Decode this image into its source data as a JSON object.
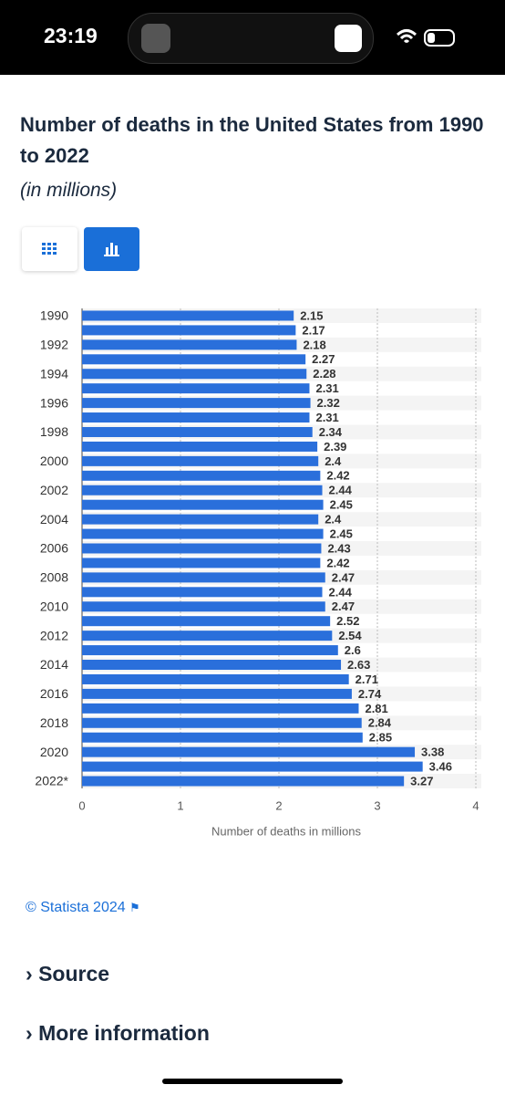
{
  "status_bar": {
    "time": "23:19"
  },
  "chart_data": {
    "type": "barh",
    "title": "Number of deaths in the United States from 1990 to 2022",
    "subtitle": "(in millions)",
    "x_label": "Number of deaths in millions",
    "categories": [
      "1990",
      null,
      "1992",
      null,
      "1994",
      null,
      "1996",
      null,
      "1998",
      null,
      "2000",
      null,
      "2002",
      null,
      "2004",
      null,
      "2006",
      null,
      "2008",
      null,
      "2010",
      null,
      "2012",
      null,
      "2014",
      null,
      "2016",
      null,
      "2018",
      null,
      "2020",
      null,
      "2022*"
    ],
    "values": [
      2.15,
      2.17,
      2.18,
      2.27,
      2.28,
      2.31,
      2.32,
      2.31,
      2.34,
      2.39,
      2.4,
      2.42,
      2.44,
      2.45,
      2.4,
      2.45,
      2.43,
      2.42,
      2.47,
      2.44,
      2.47,
      2.52,
      2.54,
      2.6,
      2.63,
      2.71,
      2.74,
      2.81,
      2.84,
      2.85,
      3.38,
      3.46,
      3.27
    ],
    "color": "#2a6fdb",
    "xlim": [
      0,
      4
    ],
    "xticks": [
      0,
      1,
      2,
      3,
      4
    ],
    "grid": true
  },
  "footer": {
    "copyright": "© Statista 2024",
    "links": [
      "Source",
      "More information"
    ]
  }
}
